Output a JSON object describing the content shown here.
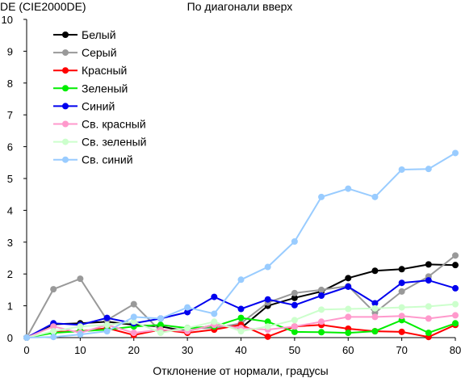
{
  "chart_data": {
    "type": "line",
    "title": "По диагонали вверх",
    "ylabel": "DE (CIE2000DE)",
    "xlabel": "Отклонение от нормали, градусы",
    "xlim": [
      0,
      80
    ],
    "ylim": [
      0,
      10
    ],
    "xticks": [
      0,
      10,
      20,
      30,
      40,
      50,
      60,
      70,
      80
    ],
    "yticks": [
      0,
      1,
      2,
      3,
      4,
      5,
      6,
      7,
      8,
      9,
      10
    ],
    "grid": false,
    "legend_position": "top-left",
    "x": [
      0,
      5,
      10,
      15,
      20,
      25,
      30,
      35,
      40,
      45,
      50,
      55,
      60,
      65,
      70,
      75,
      80
    ],
    "series": [
      {
        "name": "Белый",
        "color": "#000000",
        "values": [
          0.0,
          0.42,
          0.45,
          0.5,
          0.4,
          0.35,
          0.2,
          0.4,
          0.3,
          1.0,
          1.25,
          1.45,
          1.87,
          2.1,
          2.15,
          2.3,
          2.28
        ]
      },
      {
        "name": "Серый",
        "color": "#999999",
        "values": [
          0.0,
          1.52,
          1.85,
          0.55,
          1.05,
          0.2,
          0.3,
          0.3,
          0.45,
          1.1,
          1.4,
          1.5,
          1.62,
          0.78,
          1.45,
          1.92,
          2.58
        ]
      },
      {
        "name": "Красный",
        "color": "#ff0000",
        "values": [
          0.0,
          0.18,
          0.2,
          0.3,
          0.08,
          0.25,
          0.15,
          0.25,
          0.4,
          0.03,
          0.35,
          0.4,
          0.28,
          0.2,
          0.18,
          0.02,
          0.4
        ]
      },
      {
        "name": "Зеленый",
        "color": "#00ee00",
        "values": [
          0.0,
          0.15,
          0.2,
          0.25,
          0.35,
          0.4,
          0.3,
          0.35,
          0.62,
          0.5,
          0.18,
          0.17,
          0.15,
          0.2,
          0.55,
          0.15,
          0.45
        ]
      },
      {
        "name": "Синий",
        "color": "#0000ee",
        "values": [
          0.0,
          0.45,
          0.4,
          0.62,
          0.45,
          0.6,
          0.8,
          1.28,
          0.9,
          1.2,
          1.02,
          1.32,
          1.6,
          1.08,
          1.72,
          1.8,
          1.55
        ]
      },
      {
        "name": "Св. красный",
        "color": "#ff99cc",
        "values": [
          0.0,
          0.35,
          0.15,
          0.4,
          0.15,
          0.25,
          0.2,
          0.4,
          0.3,
          0.25,
          0.35,
          0.5,
          0.65,
          0.65,
          0.68,
          0.6,
          0.7
        ]
      },
      {
        "name": "Св. зеленый",
        "color": "#ccffcc",
        "values": [
          0.0,
          0.2,
          0.35,
          0.4,
          0.5,
          0.15,
          0.3,
          0.5,
          0.2,
          0.35,
          0.55,
          0.88,
          0.9,
          0.92,
          0.95,
          0.98,
          1.05
        ]
      },
      {
        "name": "Св. синий",
        "color": "#99ccff",
        "values": [
          0.0,
          0.02,
          0.1,
          0.2,
          0.65,
          0.6,
          0.95,
          0.75,
          1.82,
          2.22,
          3.02,
          4.42,
          4.68,
          4.42,
          5.28,
          5.3,
          5.8
        ]
      }
    ]
  }
}
